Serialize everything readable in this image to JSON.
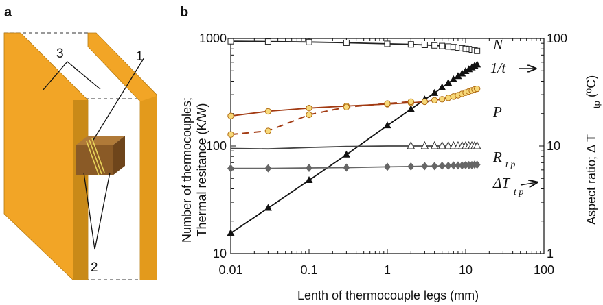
{
  "panels": {
    "a": "a",
    "b": "b"
  },
  "diagram": {
    "callouts": [
      "1",
      "2",
      "3"
    ],
    "colors": {
      "plate": "#f2a526",
      "plate_side": "#c98a18",
      "block_front": "#8a5a26",
      "block_top": "#b07a38",
      "block_side": "#6e451b"
    }
  },
  "chart_data": {
    "type": "line",
    "x_scale": "log",
    "y_scale": "log",
    "xlim": [
      0.01,
      100
    ],
    "ylim_left": [
      10,
      1000
    ],
    "ylim_right": [
      1,
      100
    ],
    "x_ticks": [
      "0.01",
      "0.1",
      "1",
      "10",
      "100"
    ],
    "y_ticks_left": [
      "10",
      "100",
      "1000"
    ],
    "y_ticks_right": [
      "1",
      "10",
      "100"
    ],
    "xlabel": "Lenth of thermocouple legs (mm)",
    "ylabel_left": [
      "Number of thermocouples;",
      "Thermal resitance (K/W)"
    ],
    "ylabel_right": "Aspect ratio;  Δ T tp(⁰C)",
    "grid": false,
    "series": [
      {
        "name": "N",
        "axis": "left",
        "color": "#222222",
        "marker": "open-square",
        "x": [
          0.01,
          0.03,
          0.1,
          0.3,
          1,
          2,
          3,
          4,
          5,
          6,
          7,
          8,
          9,
          10,
          11,
          12,
          13,
          14
        ],
        "y": [
          940,
          935,
          925,
          910,
          890,
          880,
          870,
          860,
          850,
          840,
          830,
          820,
          810,
          800,
          795,
          785,
          775,
          765
        ]
      },
      {
        "name": "1/t",
        "axis": "right",
        "color": "#111111",
        "marker": "filled-triangle",
        "x": [
          0.01,
          0.03,
          0.1,
          0.3,
          1,
          2,
          3,
          4,
          5,
          6,
          7,
          8,
          9,
          10,
          11,
          12,
          13,
          14
        ],
        "y": [
          1.55,
          2.65,
          4.8,
          8.3,
          15.5,
          22,
          27,
          31,
          35,
          38.5,
          41.5,
          44.5,
          47,
          49.5,
          51.5,
          53.5,
          55.5,
          57
        ]
      },
      {
        "name": "P",
        "axis": "left",
        "color": "#a23a12",
        "marker": "open-circle-yellow",
        "line": "solid",
        "x": [
          0.01,
          0.03,
          0.1,
          0.3,
          1,
          2,
          3,
          4,
          5,
          6,
          7,
          8,
          9,
          10,
          11,
          12,
          13,
          14
        ],
        "y": [
          190,
          210,
          225,
          235,
          245,
          252,
          258,
          266,
          272,
          280,
          288,
          296,
          305,
          313,
          321,
          328,
          335,
          340
        ]
      },
      {
        "name": "P (dashed)",
        "axis": "left",
        "color": "#a23a12",
        "marker": "open-circle-yellow",
        "line": "dashed",
        "x": [
          0.01,
          0.03,
          0.1,
          0.3,
          1,
          2
        ],
        "y": [
          128,
          138,
          195,
          230,
          248,
          258
        ]
      },
      {
        "name": "R tp",
        "axis": "left",
        "color": "#444444",
        "marker": "open-triangle",
        "x": [
          0.01,
          0.03,
          0.1,
          0.3,
          1,
          2,
          3,
          4,
          5,
          6,
          7,
          8,
          9,
          10,
          11,
          12,
          13,
          14
        ],
        "y": [
          95,
          94,
          97,
          99,
          100,
          100,
          100,
          100,
          100,
          100,
          100,
          100,
          100,
          100,
          100,
          100,
          100,
          100
        ]
      },
      {
        "name": "ΔT tp",
        "axis": "left",
        "color": "#666666",
        "marker": "filled-diamond",
        "x": [
          0.01,
          0.03,
          0.1,
          0.3,
          1,
          2,
          3,
          4,
          5,
          6,
          7,
          8,
          9,
          10,
          11,
          12,
          13,
          14
        ],
        "y": [
          62,
          62,
          62.5,
          63,
          64,
          64.5,
          65,
          65,
          65.5,
          65.5,
          66,
          66,
          66,
          66.5,
          66.5,
          66.5,
          67,
          67
        ]
      }
    ],
    "labels": {
      "N": "N",
      "inv_t": "1/t",
      "P": "P",
      "R_main": "R",
      "R_sub": "t p",
      "dT_main": "ΔT",
      "dT_sub": "t p",
      "right_main": "Aspect ratio;  Δ T",
      "right_sub": "tp",
      "right_unit": "(⁰C)"
    }
  }
}
